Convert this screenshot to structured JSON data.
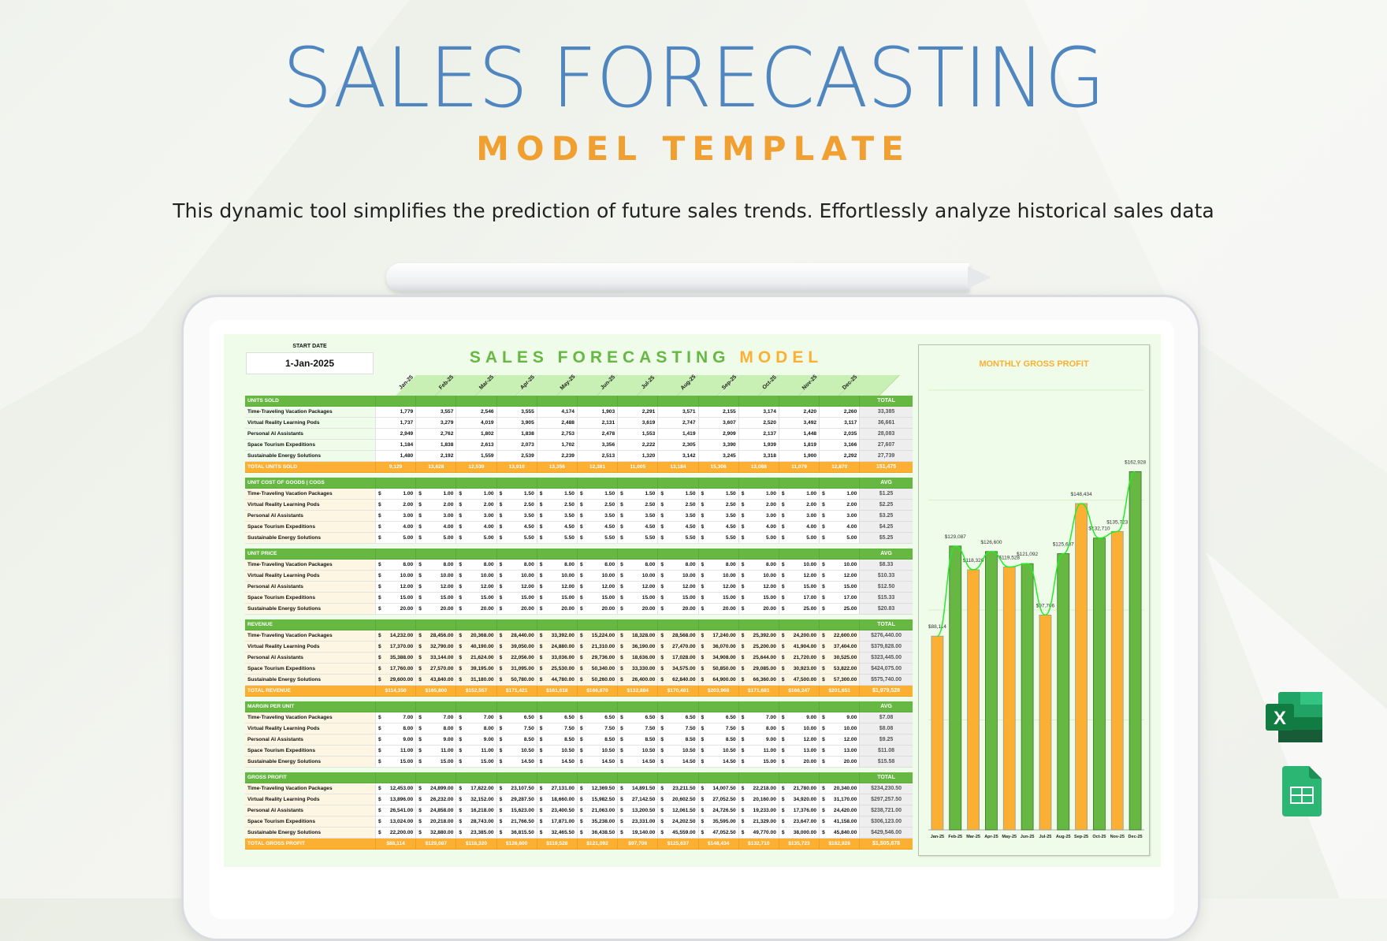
{
  "hero": {
    "title": "SALES FORECASTING",
    "subtitle": "MODEL TEMPLATE",
    "description": "This dynamic tool simplifies the prediction of future sales trends. Effortlessly analyze historical sales data"
  },
  "sheet": {
    "start_date_label": "START DATE",
    "start_date": "1-Jan-2025",
    "title_part1": "SALES FORECASTING",
    "title_part2": "MODEL",
    "months": [
      "Jan-25",
      "Feb-25",
      "Mar-25",
      "Apr-25",
      "May-25",
      "Jun-25",
      "Jul-25",
      "Aug-25",
      "Sep-25",
      "Oct-25",
      "Nov-25",
      "Dec-25"
    ],
    "sections": [
      {
        "title": "UNITS SOLD",
        "summary_header": "TOTAL",
        "format": "int",
        "style": "plain",
        "rows": [
          {
            "label": "Time-Traveling Vacation Packages",
            "values": [
              1779,
              3557,
              2546,
              3555,
              4174,
              1903,
              2291,
              3571,
              2155,
              3174,
              2420,
              2260
            ],
            "summary": "33,385"
          },
          {
            "label": "Virtual Reality Learning Pods",
            "values": [
              1737,
              3279,
              4019,
              3905,
              2488,
              2131,
              3619,
              2747,
              3607,
              2520,
              3492,
              3117
            ],
            "summary": "36,661"
          },
          {
            "label": "Personal AI Assistants",
            "values": [
              2949,
              2762,
              1802,
              1838,
              2753,
              2478,
              1553,
              1419,
              2909,
              2137,
              1448,
              2035
            ],
            "summary": "28,083"
          },
          {
            "label": "Space Tourism Expeditions",
            "values": [
              1184,
              1838,
              2613,
              2073,
              1702,
              3356,
              2222,
              2305,
              3390,
              1939,
              1819,
              3166
            ],
            "summary": "27,607"
          },
          {
            "label": "Sustainable Energy Solutions",
            "values": [
              1480,
              2192,
              1559,
              2539,
              2239,
              2513,
              1320,
              3142,
              3245,
              3318,
              1900,
              2292
            ],
            "summary": "27,739"
          }
        ],
        "total": {
          "label": "TOTAL UNITS SOLD",
          "values": [
            "9,129",
            "13,628",
            "12,539",
            "13,910",
            "13,356",
            "12,381",
            "11,005",
            "13,184",
            "15,306",
            "13,088",
            "11,079",
            "12,870"
          ],
          "summary": "151,475"
        }
      },
      {
        "title": "UNIT COST OF GOODS | COGS",
        "summary_header": "AVG",
        "format": "money",
        "style": "cream",
        "rows": [
          {
            "label": "Time-Traveling Vacation Packages",
            "values": [
              1,
              1,
              1,
              1.5,
              1.5,
              1.5,
              1.5,
              1.5,
              1.5,
              1,
              1,
              1
            ],
            "summary": "$1.25"
          },
          {
            "label": "Virtual Reality Learning Pods",
            "values": [
              2,
              2,
              2,
              2.5,
              2.5,
              2.5,
              2.5,
              2.5,
              2.5,
              2,
              2,
              2
            ],
            "summary": "$2.25"
          },
          {
            "label": "Personal AI Assistants",
            "values": [
              3,
              3,
              3,
              3.5,
              3.5,
              3.5,
              3.5,
              3.5,
              3.5,
              3,
              3,
              3
            ],
            "summary": "$3.25"
          },
          {
            "label": "Space Tourism Expeditions",
            "values": [
              4,
              4,
              4,
              4.5,
              4.5,
              4.5,
              4.5,
              4.5,
              4.5,
              4,
              4,
              4
            ],
            "summary": "$4.25"
          },
          {
            "label": "Sustainable Energy Solutions",
            "values": [
              5,
              5,
              5,
              5.5,
              5.5,
              5.5,
              5.5,
              5.5,
              5.5,
              5,
              5,
              5
            ],
            "summary": "$5.25"
          }
        ]
      },
      {
        "title": "UNIT PRICE",
        "summary_header": "AVG",
        "format": "money",
        "style": "cream",
        "rows": [
          {
            "label": "Time-Traveling Vacation Packages",
            "values": [
              8,
              8,
              8,
              8,
              8,
              8,
              8,
              8,
              8,
              8,
              10,
              10
            ],
            "summary": "$8.33"
          },
          {
            "label": "Virtual Reality Learning Pods",
            "values": [
              10,
              10,
              10,
              10,
              10,
              10,
              10,
              10,
              10,
              10,
              12,
              12
            ],
            "summary": "$10.33"
          },
          {
            "label": "Personal AI Assistants",
            "values": [
              12,
              12,
              12,
              12,
              12,
              12,
              12,
              12,
              12,
              12,
              15,
              15
            ],
            "summary": "$12.50"
          },
          {
            "label": "Space Tourism Expeditions",
            "values": [
              15,
              15,
              15,
              15,
              15,
              15,
              15,
              15,
              15,
              15,
              17,
              17
            ],
            "summary": "$15.33"
          },
          {
            "label": "Sustainable Energy Solutions",
            "values": [
              20,
              20,
              20,
              20,
              20,
              20,
              20,
              20,
              20,
              20,
              25,
              25
            ],
            "summary": "$20.83"
          }
        ]
      },
      {
        "title": "REVENUE",
        "summary_header": "TOTAL",
        "format": "money",
        "style": "cream-all",
        "rows": [
          {
            "label": "Time-Traveling Vacation Packages",
            "values": [
              14232,
              28456,
              20368,
              28440,
              33392,
              15224,
              18328,
              28568,
              17240,
              25392,
              24200,
              22600
            ],
            "summary": "$276,440.00"
          },
          {
            "label": "Virtual Reality Learning Pods",
            "values": [
              17370,
              32790,
              40190,
              39050,
              24880,
              21310,
              36190,
              27470,
              36070,
              25200,
              41904,
              37404
            ],
            "summary": "$379,828.00"
          },
          {
            "label": "Personal AI Assistants",
            "values": [
              35388,
              33144,
              21624,
              22056,
              33036,
              29736,
              18636,
              17028,
              34908,
              25644,
              21720,
              30525
            ],
            "summary": "$323,445.00"
          },
          {
            "label": "Space Tourism Expeditions",
            "values": [
              17760,
              27570,
              39195,
              31095,
              25530,
              50340,
              33330,
              34575,
              50850,
              29085,
              30923,
              53822
            ],
            "summary": "$424,075.00"
          },
          {
            "label": "Sustainable Energy Solutions",
            "values": [
              29600,
              43840,
              31180,
              50780,
              44780,
              50260,
              26400,
              62840,
              64900,
              66360,
              47500,
              57300
            ],
            "summary": "$575,740.00"
          }
        ],
        "total": {
          "label": "TOTAL REVENUE",
          "values": [
            "$114,350",
            "$165,800",
            "$152,557",
            "$171,421",
            "$161,618",
            "$166,870",
            "$132,884",
            "$170,481",
            "$203,968",
            "$171,681",
            "$166,247",
            "$201,651"
          ],
          "summary": "$1,979,528"
        }
      },
      {
        "title": "MARGIN PER UNIT",
        "summary_header": "AVG",
        "format": "money",
        "style": "cream",
        "rows": [
          {
            "label": "Time-Traveling Vacation Packages",
            "values": [
              7,
              7,
              7,
              6.5,
              6.5,
              6.5,
              6.5,
              6.5,
              6.5,
              7,
              9,
              9
            ],
            "summary": "$7.08"
          },
          {
            "label": "Virtual Reality Learning Pods",
            "values": [
              8,
              8,
              8,
              7.5,
              7.5,
              7.5,
              7.5,
              7.5,
              7.5,
              8,
              10,
              10
            ],
            "summary": "$8.08"
          },
          {
            "label": "Personal AI Assistants",
            "values": [
              9,
              9,
              9,
              8.5,
              8.5,
              8.5,
              8.5,
              8.5,
              8.5,
              9,
              12,
              12
            ],
            "summary": "$9.25"
          },
          {
            "label": "Space Tourism Expeditions",
            "values": [
              11,
              11,
              11,
              10.5,
              10.5,
              10.5,
              10.5,
              10.5,
              10.5,
              11,
              13,
              13
            ],
            "summary": "$11.08"
          },
          {
            "label": "Sustainable Energy Solutions",
            "values": [
              15,
              15,
              15,
              14.5,
              14.5,
              14.5,
              14.5,
              14.5,
              14.5,
              15,
              20,
              20
            ],
            "summary": "$15.58"
          }
        ]
      },
      {
        "title": "GROSS PROFIT",
        "summary_header": "TOTAL",
        "format": "money",
        "style": "cream",
        "rows": [
          {
            "label": "Time-Traveling Vacation Packages",
            "values": [
              12453,
              24899,
              17822,
              23107.5,
              27131,
              12369.5,
              14891.5,
              23211.5,
              14007.5,
              22218,
              21780,
              20340
            ],
            "summary": "$234,230.50"
          },
          {
            "label": "Virtual Reality Learning Pods",
            "values": [
              13896,
              26232,
              32152,
              29287.5,
              18660,
              15982.5,
              27142.5,
              20602.5,
              27052.5,
              20160,
              34920,
              31170
            ],
            "summary": "$297,257.50"
          },
          {
            "label": "Personal AI Assistants",
            "values": [
              26541,
              24858,
              16218,
              15623,
              23400.5,
              21063,
              13200.5,
              12061.5,
              24726.5,
              19233,
              17376,
              24420
            ],
            "summary": "$238,721.00"
          },
          {
            "label": "Space Tourism Expeditions",
            "values": [
              13024,
              20218,
              28743,
              21766.5,
              17871,
              35238,
              23331,
              24202.5,
              35595,
              21329,
              23647,
              41158
            ],
            "summary": "$306,123.00"
          },
          {
            "label": "Sustainable Energy Solutions",
            "values": [
              22200,
              32880,
              23385,
              36815.5,
              32465.5,
              36438.5,
              19140,
              45559,
              47052.5,
              49770,
              38000,
              45840
            ],
            "summary": "$429,546.00"
          }
        ],
        "total": {
          "label": "TOTAL GROSS PROFIT",
          "values": [
            "$88,114",
            "$129,087",
            "$118,320",
            "$126,600",
            "$119,528",
            "$121,092",
            "$97,706",
            "$125,637",
            "$148,434",
            "$132,710",
            "$135,723",
            "$162,928"
          ],
          "summary": "$1,505,878"
        }
      }
    ]
  },
  "chart_data": {
    "type": "bar",
    "title": "MONTHLY GROSS PROFIT",
    "categories": [
      "Jan-25",
      "Feb-25",
      "Mar-25",
      "Apr-25",
      "May-25",
      "Jun-25",
      "Jul-25",
      "Aug-25",
      "Sep-25",
      "Oct-25",
      "Nov-25",
      "Dec-25"
    ],
    "values": [
      88114,
      129087,
      118320,
      126600,
      119528,
      121092,
      97706,
      125637,
      148434,
      132710,
      135723,
      162928
    ],
    "data_labels": [
      "$88,114",
      "$129,087",
      "$118,320",
      "$126,600",
      "$119,528",
      "$121,092",
      "$97,706",
      "$125,637",
      "$148,434",
      "$132,710",
      "$135,723",
      "$162,928"
    ],
    "overlay": "smoothed line through bar values",
    "bar_colors": [
      "#fbb034",
      "#66b843"
    ],
    "line_color": "#22ee22",
    "ylim": [
      0,
      200000
    ],
    "grid": true,
    "legend": "none"
  },
  "icons": {
    "excel": "excel-icon",
    "sheets": "google-sheets-icon"
  }
}
